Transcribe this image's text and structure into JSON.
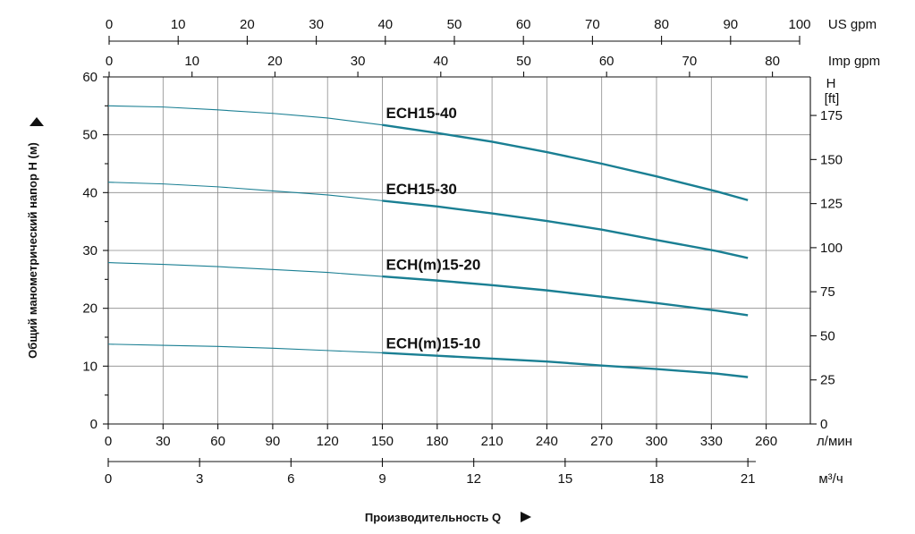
{
  "chart_data": {
    "type": "line",
    "title": "",
    "ylabel": "Общий манометрический напор H (м)",
    "xlabel": "Производительность Q",
    "y_left": {
      "ticks": [
        0,
        10,
        20,
        30,
        40,
        50,
        60
      ],
      "ylim": [
        0,
        60
      ]
    },
    "y_right": {
      "label_line1": "H",
      "label_line2": "[ft]",
      "ticks": [
        "0",
        "25",
        "50",
        "75",
        "100",
        "125",
        "150",
        "175"
      ]
    },
    "x_lpm": {
      "unit": "л/мин",
      "ticks": [
        "0",
        "30",
        "60",
        "90",
        "120",
        "150",
        "180",
        "210",
        "240",
        "270",
        "300",
        "330",
        "260"
      ]
    },
    "x_m3h": {
      "unit": "м³/ч",
      "ticks": [
        "0",
        "3",
        "6",
        "9",
        "12",
        "15",
        "18",
        "21"
      ]
    },
    "x_usgpm": {
      "unit": "US gpm",
      "ticks": [
        "0",
        "10",
        "20",
        "30",
        "40",
        "50",
        "60",
        "70",
        "80",
        "90",
        "100"
      ]
    },
    "x_impgpm": {
      "unit": "Imp gpm",
      "ticks": [
        "0",
        "10",
        "20",
        "30",
        "40",
        "50",
        "60",
        "70",
        "80"
      ]
    },
    "grid": true,
    "x_unit_note": "x values in л/мин",
    "series": [
      {
        "name": "ECH15-40",
        "color": "#1a7f93",
        "x": [
          0,
          30,
          60,
          90,
          120,
          150,
          180,
          210,
          240,
          270,
          300,
          333,
          350
        ],
        "y": [
          55.0,
          54.8,
          54.3,
          53.7,
          52.9,
          51.7,
          50.3,
          48.8,
          47.0,
          45.0,
          42.8,
          40.2,
          38.7
        ]
      },
      {
        "name": "ECH15-30",
        "color": "#1a7f93",
        "x": [
          0,
          30,
          60,
          90,
          120,
          150,
          180,
          210,
          240,
          270,
          300,
          333,
          350
        ],
        "y": [
          41.8,
          41.5,
          41.0,
          40.3,
          39.6,
          38.6,
          37.6,
          36.4,
          35.1,
          33.6,
          31.8,
          29.9,
          28.7
        ]
      },
      {
        "name": "ECH(m)15-20",
        "color": "#1a7f93",
        "x": [
          0,
          30,
          60,
          90,
          120,
          150,
          180,
          210,
          240,
          270,
          300,
          333,
          350
        ],
        "y": [
          27.9,
          27.6,
          27.2,
          26.7,
          26.2,
          25.5,
          24.8,
          24.0,
          23.1,
          22.0,
          20.9,
          19.6,
          18.8
        ]
      },
      {
        "name": "ECH(m)15-10",
        "color": "#1a7f93",
        "x": [
          0,
          30,
          60,
          90,
          120,
          150,
          180,
          210,
          240,
          270,
          300,
          333,
          350
        ],
        "y": [
          13.8,
          13.6,
          13.4,
          13.1,
          12.7,
          12.3,
          11.8,
          11.3,
          10.8,
          10.1,
          9.5,
          8.7,
          8.1
        ]
      }
    ],
    "annotation_pos": [
      {
        "series": "ECH15-40",
        "x": 150,
        "y": 53.8
      },
      {
        "series": "ECH15-30",
        "x": 150,
        "y": 40.7
      },
      {
        "series": "ECH(m)15-20",
        "x": 150,
        "y": 27.6
      },
      {
        "series": "ECH(m)15-10",
        "x": 150,
        "y": 14.0
      }
    ]
  }
}
